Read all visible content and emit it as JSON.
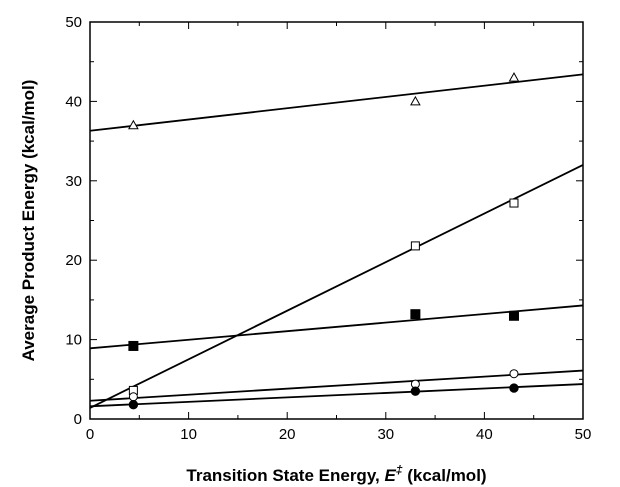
{
  "chart_data": {
    "type": "scatter",
    "xlabel_prefix": "Transition State Energy, ",
    "xlabel_symbol": "E",
    "xlabel_superscript": "‡",
    "xlabel_suffix": " (kcal/mol)",
    "ylabel": "Average Product Energy (kcal/mol)",
    "xlim": [
      0,
      50
    ],
    "ylim": [
      0,
      50
    ],
    "xticks": [
      0,
      10,
      20,
      30,
      40,
      50
    ],
    "yticks": [
      0,
      10,
      20,
      30,
      40,
      50
    ],
    "grid": false,
    "series": [
      {
        "marker": "open-triangle",
        "points": [
          [
            4.4,
            37.0
          ],
          [
            33.0,
            40.0
          ],
          [
            43.0,
            43.0
          ]
        ],
        "fit": [
          [
            0,
            36.3
          ],
          [
            50,
            43.4
          ]
        ]
      },
      {
        "marker": "open-square",
        "points": [
          [
            4.4,
            3.6
          ],
          [
            33.0,
            21.8
          ],
          [
            43.0,
            27.2
          ]
        ],
        "fit": [
          [
            0,
            1.4
          ],
          [
            50,
            32.0
          ]
        ]
      },
      {
        "marker": "filled-square",
        "points": [
          [
            4.4,
            9.2
          ],
          [
            33.0,
            13.2
          ],
          [
            43.0,
            13.0
          ]
        ],
        "fit": [
          [
            0,
            8.9
          ],
          [
            50,
            14.3
          ]
        ]
      },
      {
        "marker": "open-circle",
        "points": [
          [
            4.4,
            2.8
          ],
          [
            33.0,
            4.4
          ],
          [
            43.0,
            5.7
          ]
        ],
        "fit": [
          [
            0,
            2.3
          ],
          [
            50,
            6.1
          ]
        ]
      },
      {
        "marker": "filled-circle",
        "points": [
          [
            4.4,
            1.8
          ],
          [
            33.0,
            3.5
          ],
          [
            43.0,
            3.9
          ]
        ],
        "fit": [
          [
            0,
            1.6
          ],
          [
            50,
            4.4
          ]
        ]
      }
    ]
  }
}
